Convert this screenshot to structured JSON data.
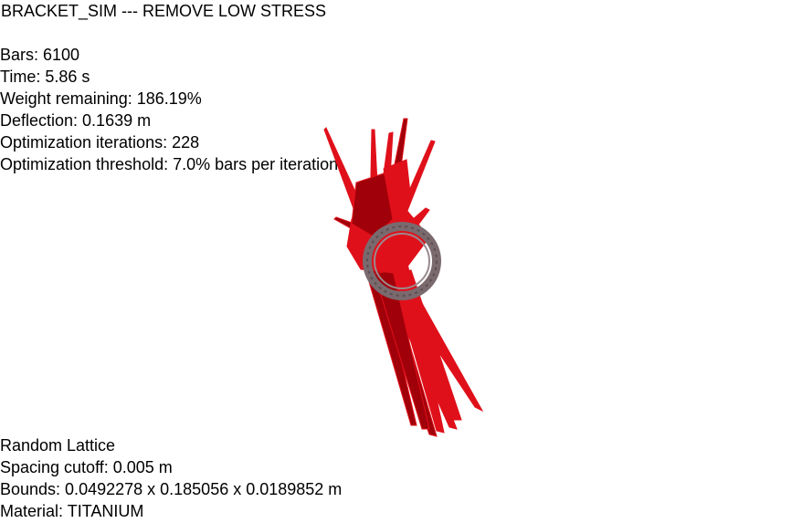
{
  "window": {
    "title": "BRACKET_SIM --- REMOVE LOW STRESS"
  },
  "stats": [
    "Bars: 6100",
    "Time: 5.86 s",
    "Weight remaining: 186.19%",
    "Deflection: 0.1639 m",
    "Optimization iterations: 228",
    "Optimization threshold: 7.0% bars per iteration"
  ],
  "footer": [
    "Random Lattice",
    "Spacing cutoff: 0.005 m",
    "Bounds: 0.0492278 x 0.185056 x 0.0189852 m",
    "Material: TITANIUM"
  ],
  "colors": {
    "background": "#ffffff",
    "text": "#000000",
    "bars": "#e0101a",
    "bars_dark": "#a0000a",
    "ring": "#7a6a6e"
  }
}
